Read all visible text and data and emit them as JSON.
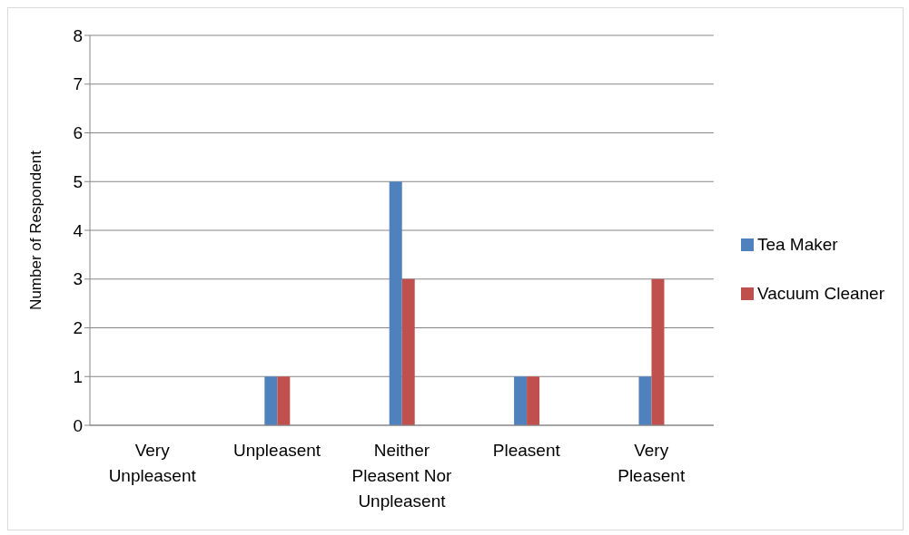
{
  "chart_data": {
    "type": "bar",
    "ylabel": "Number of Respondent",
    "categories": [
      "Very Unpleasent",
      "Unpleasent",
      "Neither Pleasent Nor Unpleasent",
      "Pleasent",
      "Very Pleasent"
    ],
    "series": [
      {
        "name": "Tea Maker",
        "color": "#4f81bd",
        "values": [
          0,
          1,
          5,
          1,
          1
        ]
      },
      {
        "name": "Vacuum Cleaner",
        "color": "#c0504d",
        "values": [
          0,
          1,
          3,
          1,
          3
        ]
      }
    ],
    "ylim": [
      0,
      8
    ],
    "yticks": [
      0,
      1,
      2,
      3,
      4,
      5,
      6,
      7,
      8
    ],
    "grid": "y",
    "legend": "right"
  }
}
